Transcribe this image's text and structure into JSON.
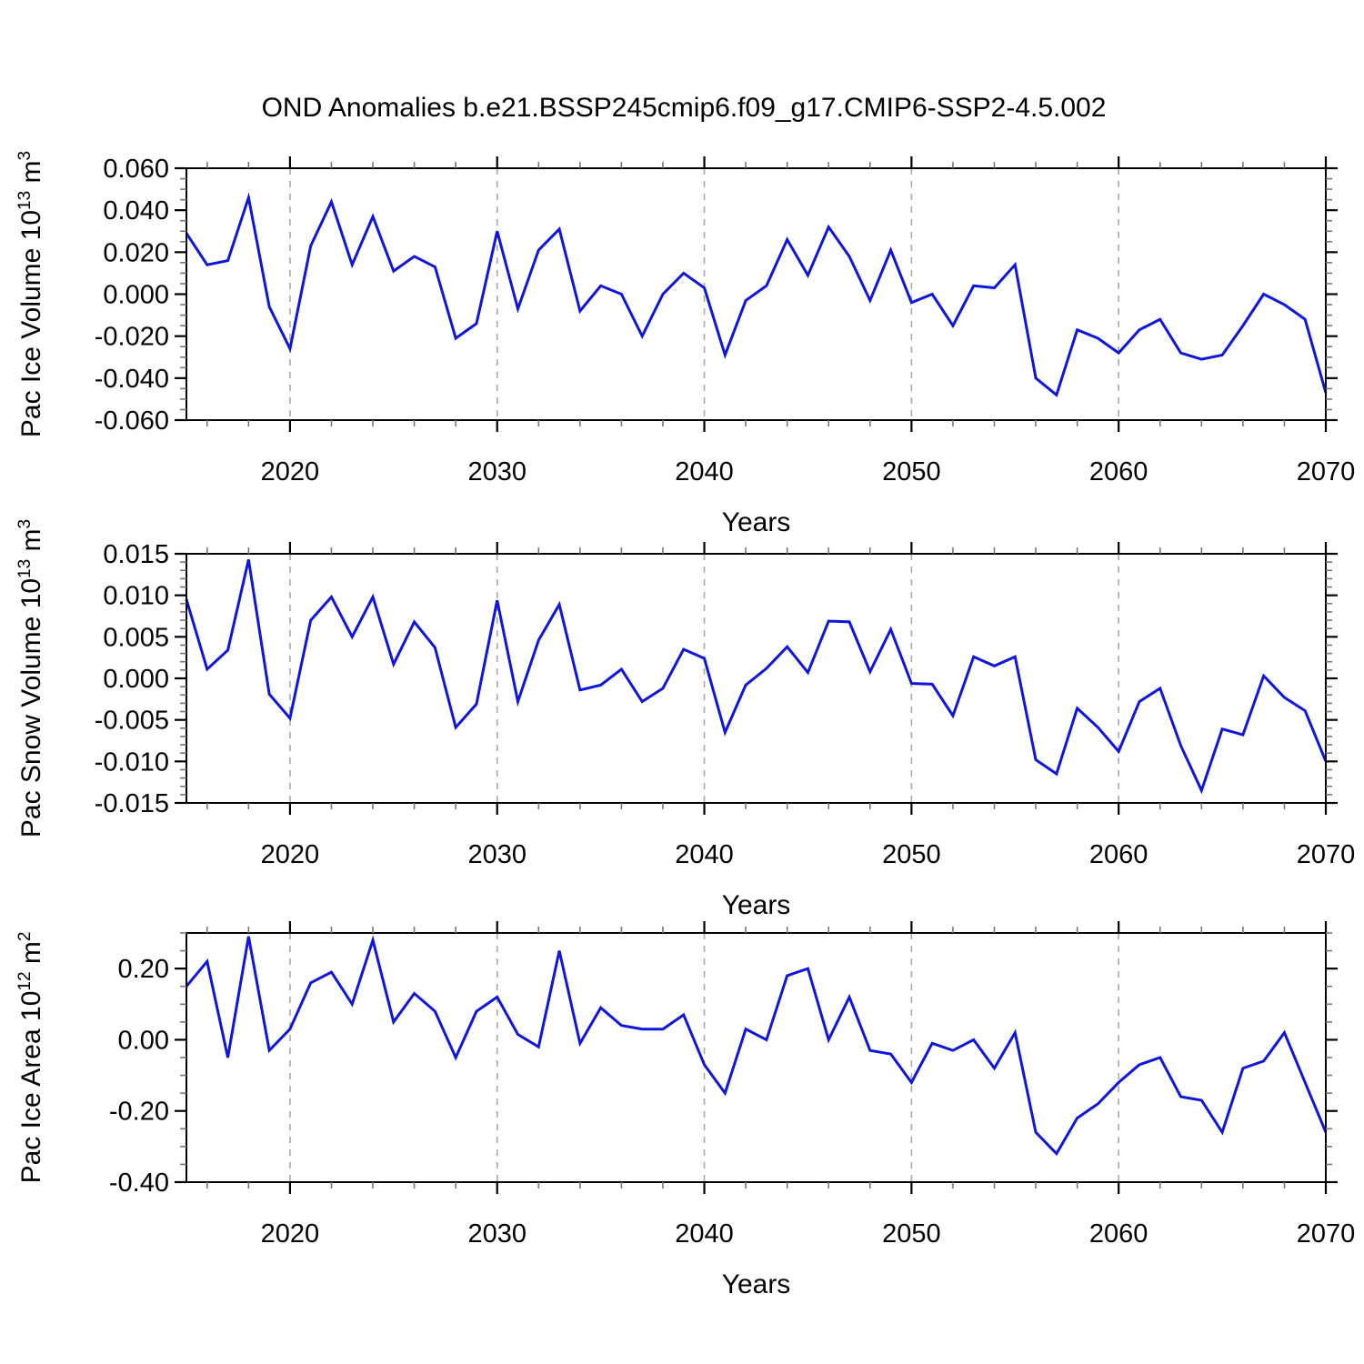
{
  "title": "OND Anomalies b.e21.BSSP245cmip6.f09_g17.CMIP6-SSP2-4.5.002",
  "xlabel": "Years",
  "colors": {
    "line": "#0e15e0",
    "axis": "#000000",
    "grid": "#aaaaaa",
    "minor_tick": "#777777",
    "text": "#000000"
  },
  "x": {
    "start": 2015,
    "end": 2070,
    "major_ticks": [
      2020,
      2030,
      2040,
      2050,
      2060,
      2070
    ],
    "major_labels": [
      "2020",
      "2030",
      "2040",
      "2050",
      "2060",
      "2070"
    ],
    "minor_step": 2,
    "grid_years": [
      2020,
      2030,
      2040,
      2050,
      2060
    ]
  },
  "years": [
    2015,
    2016,
    2017,
    2018,
    2019,
    2020,
    2021,
    2022,
    2023,
    2024,
    2025,
    2026,
    2027,
    2028,
    2029,
    2030,
    2031,
    2032,
    2033,
    2034,
    2035,
    2036,
    2037,
    2038,
    2039,
    2040,
    2041,
    2042,
    2043,
    2044,
    2045,
    2046,
    2047,
    2048,
    2049,
    2050,
    2051,
    2052,
    2053,
    2054,
    2055,
    2056,
    2057,
    2058,
    2059,
    2060,
    2061,
    2062,
    2063,
    2064,
    2065,
    2066,
    2067,
    2068,
    2069,
    2070
  ],
  "chart_data": [
    {
      "type": "line",
      "id": "pac-ice-volume",
      "title": "Pac Ice Volume anomalies",
      "ylabel_parts": [
        {
          "t": "Pac Ice Volume 10"
        },
        {
          "t": "13",
          "sup": true
        },
        {
          "t": " m"
        },
        {
          "t": "3",
          "sup": true
        }
      ],
      "ylim": [
        -0.06,
        0.06
      ],
      "yticks": {
        "values": [
          0.06,
          0.04,
          0.02,
          0.0,
          -0.02,
          -0.04,
          -0.06
        ],
        "labels": [
          "0.060",
          "0.040",
          "0.020",
          "0.000",
          "-0.020",
          "-0.040",
          "-0.060"
        ],
        "minor_step": 0.005
      },
      "values": [
        0.029,
        0.014,
        0.016,
        0.046,
        -0.006,
        -0.026,
        0.023,
        0.044,
        0.014,
        0.037,
        0.011,
        0.018,
        0.013,
        -0.021,
        -0.014,
        0.03,
        -0.007,
        0.021,
        0.031,
        -0.008,
        0.004,
        0.0,
        -0.02,
        0.0,
        0.01,
        0.003,
        -0.029,
        -0.003,
        0.004,
        0.026,
        0.009,
        0.032,
        0.018,
        -0.003,
        0.021,
        -0.004,
        0.0,
        -0.015,
        0.004,
        0.003,
        0.014,
        -0.04,
        -0.048,
        -0.017,
        -0.021,
        -0.028,
        -0.017,
        -0.012,
        -0.028,
        -0.031,
        -0.029,
        -0.015,
        0.0,
        -0.005,
        -0.012,
        -0.047
      ]
    },
    {
      "type": "line",
      "id": "pac-snow-volume",
      "title": "Pac Snow Volume anomalies",
      "ylabel_parts": [
        {
          "t": "Pac Snow Volume 10"
        },
        {
          "t": "13",
          "sup": true
        },
        {
          "t": " m"
        },
        {
          "t": "3",
          "sup": true
        }
      ],
      "ylim": [
        -0.015,
        0.015
      ],
      "yticks": {
        "values": [
          0.015,
          0.01,
          0.005,
          0.0,
          -0.005,
          -0.01,
          -0.015
        ],
        "labels": [
          "0.015",
          "0.010",
          "0.005",
          "0.000",
          "-0.005",
          "-0.010",
          "-0.015"
        ],
        "minor_step": 0.001
      },
      "values": [
        0.0095,
        0.0011,
        0.0034,
        0.0143,
        -0.0019,
        -0.0048,
        0.007,
        0.0098,
        0.005,
        0.0098,
        0.0017,
        0.0068,
        0.0037,
        -0.0059,
        -0.0031,
        0.0094,
        -0.0028,
        0.0046,
        0.0089,
        -0.0014,
        -0.0008,
        0.0011,
        -0.0028,
        -0.0012,
        0.0035,
        0.0024,
        -0.0065,
        -0.0008,
        0.0012,
        0.0038,
        0.0007,
        0.0069,
        0.0068,
        0.0008,
        0.0059,
        -0.0006,
        -0.0007,
        -0.0045,
        0.0026,
        0.0015,
        0.0026,
        -0.0098,
        -0.0115,
        -0.0036,
        -0.0059,
        -0.0088,
        -0.0028,
        -0.0012,
        -0.0081,
        -0.0135,
        -0.0061,
        -0.0068,
        0.0003,
        -0.0023,
        -0.0039,
        -0.01
      ]
    },
    {
      "type": "line",
      "id": "pac-ice-area",
      "title": "Pac Ice Area anomalies",
      "ylabel_parts": [
        {
          "t": "Pac Ice Area 10"
        },
        {
          "t": "12",
          "sup": true
        },
        {
          "t": " m"
        },
        {
          "t": "2",
          "sup": true
        }
      ],
      "ylim": [
        -0.4,
        0.3
      ],
      "yticks": {
        "values": [
          0.2,
          0.0,
          -0.2,
          -0.4
        ],
        "labels": [
          "0.20",
          "0.00",
          "-0.20",
          "-0.40"
        ],
        "minor_step": 0.05
      },
      "values": [
        0.15,
        0.22,
        -0.05,
        0.29,
        -0.03,
        0.03,
        0.16,
        0.19,
        0.1,
        0.28,
        0.05,
        0.13,
        0.08,
        -0.05,
        0.08,
        0.12,
        0.015,
        -0.02,
        0.25,
        -0.01,
        0.09,
        0.04,
        0.03,
        0.03,
        0.07,
        -0.07,
        -0.15,
        0.03,
        0.0,
        0.18,
        0.2,
        0.0,
        0.12,
        -0.03,
        -0.04,
        -0.12,
        -0.01,
        -0.03,
        0.0,
        -0.08,
        0.02,
        -0.26,
        -0.32,
        -0.22,
        -0.18,
        -0.12,
        -0.07,
        -0.05,
        -0.16,
        -0.17,
        -0.26,
        -0.08,
        -0.06,
        0.02,
        -0.12,
        -0.26
      ]
    }
  ]
}
